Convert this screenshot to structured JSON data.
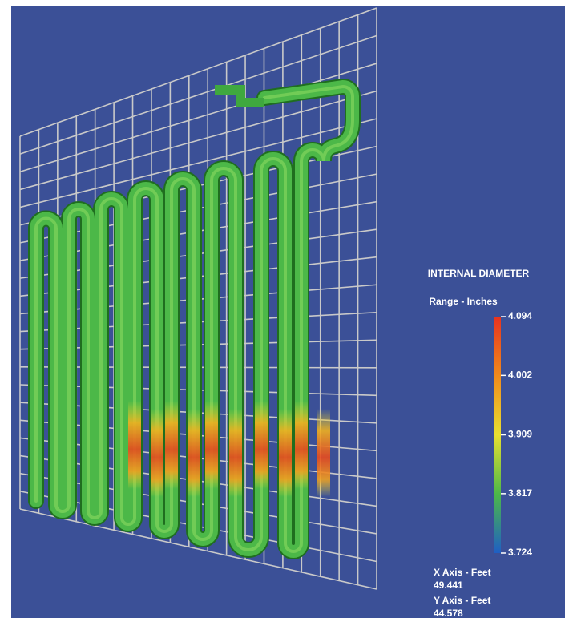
{
  "legend": {
    "title": "INTERNAL DIAMETER",
    "subtitle": "Range - Inches",
    "range": [
      3.724,
      4.094
    ],
    "ticks": [
      4.094,
      4.002,
      3.909,
      3.817,
      3.724
    ]
  },
  "axes_info": [
    {
      "label": "X Axis - Feet",
      "value": "49.441"
    },
    {
      "label": "Y Axis - Feet",
      "value": "44.578"
    }
  ]
}
